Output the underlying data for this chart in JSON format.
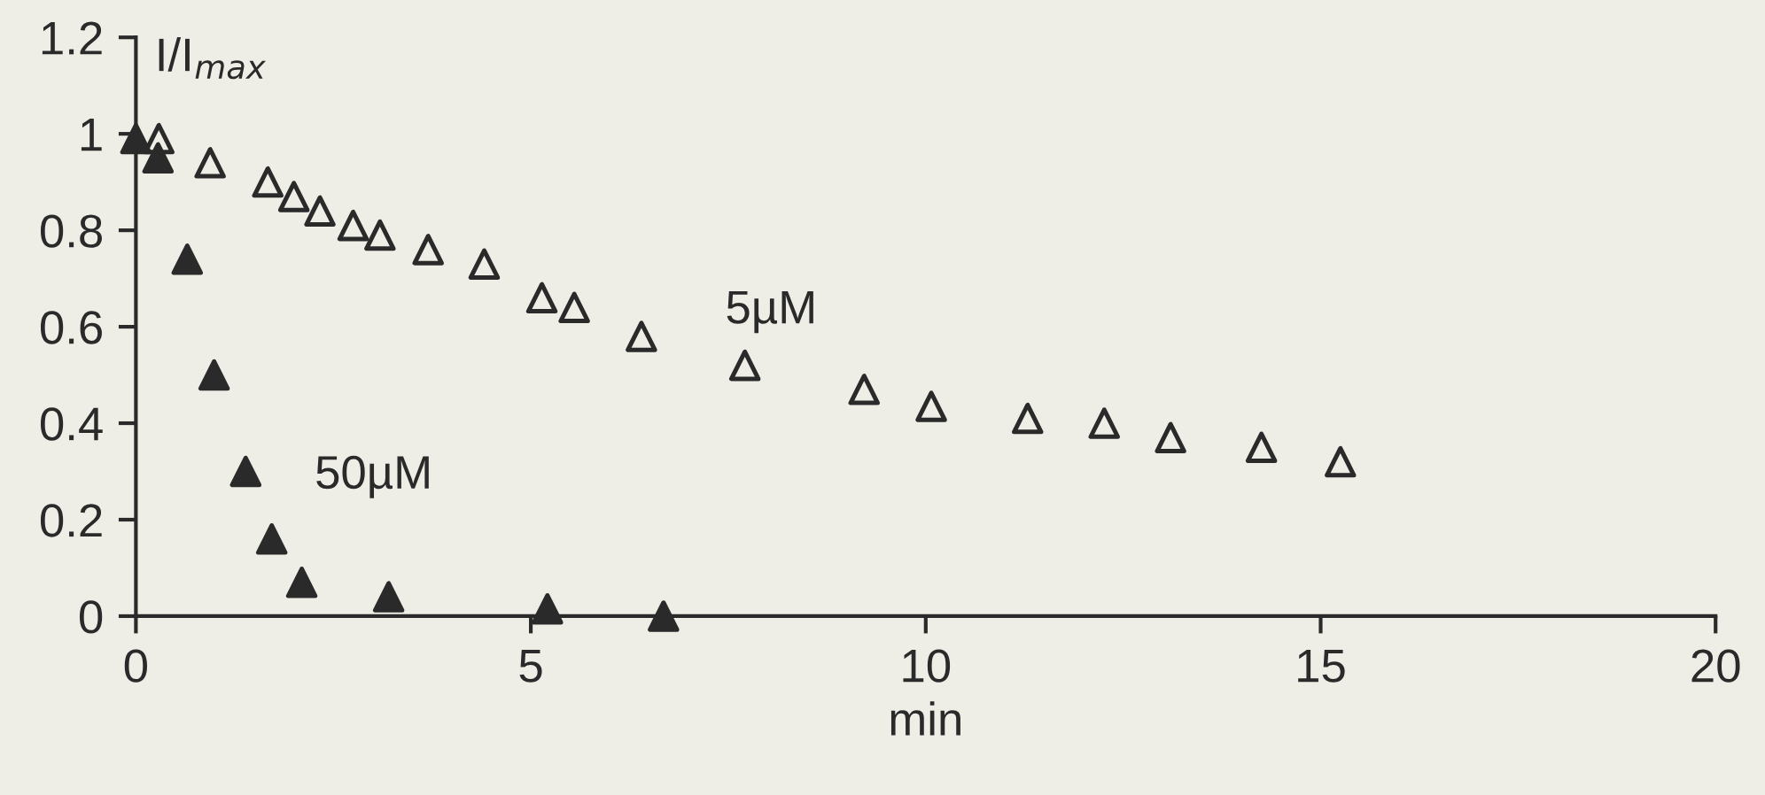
{
  "chart_data": {
    "type": "scatter",
    "xlabel": "min",
    "ylabel": "I/I$_{max}$",
    "xlim": [
      0,
      20
    ],
    "xticks": [
      0,
      5,
      10,
      15,
      20
    ],
    "ylim": [
      0,
      1.2
    ],
    "yticks": [
      0,
      0.2,
      0.4,
      0.6,
      0.8,
      1,
      1.2
    ],
    "grid": false,
    "legend": false,
    "series": [
      {
        "name": "5µM",
        "color": "#2a2a2a",
        "marker": "triangle",
        "x": [
          0.29,
          0.94,
          1.67,
          2.0,
          2.33,
          2.75,
          3.09,
          3.7,
          4.41,
          5.14,
          5.55,
          6.4,
          7.71,
          9.22,
          10.07,
          11.29,
          12.26,
          13.1,
          14.25,
          15.25
        ],
        "values": [
          0.99,
          0.94,
          0.9,
          0.87,
          0.84,
          0.81,
          0.79,
          0.76,
          0.73,
          0.66,
          0.64,
          0.58,
          0.52,
          0.47,
          0.435,
          0.41,
          0.4,
          0.37,
          0.35,
          0.32
        ]
      },
      {
        "name": "50µM",
        "color": "#2a2a2a",
        "marker": "triangle",
        "x": [
          0,
          0.28,
          0.65,
          0.99,
          1.39,
          1.72,
          2.1,
          3.2,
          5.21,
          6.68
        ],
        "values": [
          0.99,
          0.95,
          0.74,
          0.5,
          0.3,
          0.16,
          0.07,
          0.04,
          0.015,
          0.0
        ]
      }
    ]
  }
}
